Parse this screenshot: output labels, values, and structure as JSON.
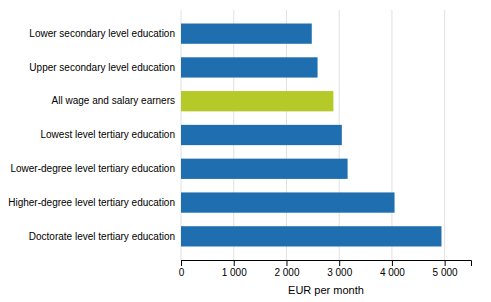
{
  "chart_data": {
    "type": "bar",
    "orientation": "horizontal",
    "categories": [
      "Lower secondary level education",
      "Upper secondary level education",
      "All wage and salary earners",
      "Lowest level tertiary education",
      "Lower-degree level tertiary education",
      "Higher-degree level tertiary education",
      "Doctorate level tertiary education"
    ],
    "values": [
      2480,
      2590,
      2890,
      3050,
      3160,
      4050,
      4940
    ],
    "colors": [
      "#1f6fb0",
      "#1f6fb0",
      "#b5c928",
      "#1f6fb0",
      "#1f6fb0",
      "#1f6fb0",
      "#1f6fb0"
    ],
    "xlabel": "EUR per month",
    "xlim": [
      0,
      5500
    ],
    "xticks": [
      0,
      {
        "value": 1000,
        "label": "1 000"
      },
      {
        "value": 2000,
        "label": "2 000"
      },
      {
        "value": 3000,
        "label": "3 000"
      },
      {
        "value": 4000,
        "label": "4 000"
      },
      {
        "value": 5000,
        "label": "5 000"
      }
    ],
    "grid": true
  }
}
